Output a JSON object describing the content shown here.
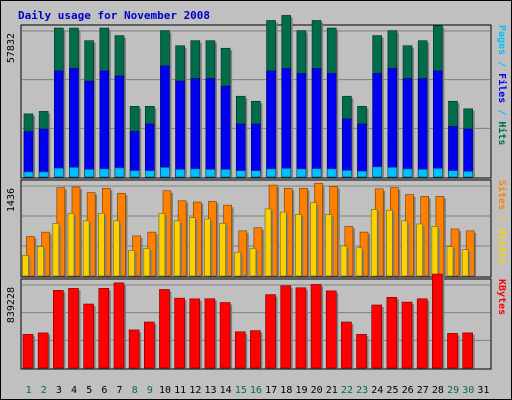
{
  "chart_data": {
    "type": "bar",
    "title": "Daily usage for November 2008",
    "categories": [
      "1",
      "2",
      "3",
      "4",
      "5",
      "6",
      "7",
      "8",
      "9",
      "10",
      "11",
      "12",
      "13",
      "14",
      "15",
      "16",
      "17",
      "18",
      "19",
      "20",
      "21",
      "22",
      "23",
      "24",
      "25",
      "26",
      "27",
      "28",
      "29",
      "30",
      "31"
    ],
    "weekend_days": [
      "1",
      "2",
      "8",
      "9",
      "15",
      "16",
      "22",
      "23",
      "29",
      "30"
    ],
    "colors": {
      "hits": "#006c4c",
      "files": "#0000f0",
      "pages": "#00c0ff",
      "visits": "#ff8000",
      "sites": "#ffd000",
      "kbytes": "#ff0000",
      "weekday_label": "#000000",
      "weekend_label": "#007040",
      "plot_bg": "#c0c0c0",
      "grid": "#808080"
    },
    "panels": [
      {
        "id": "hits-files-pages",
        "ymax": 57832,
        "ytick_label": "57832",
        "right_label": [
          {
            "text": "Pages",
            "color": "#00c0ff"
          },
          {
            "text": " / ",
            "color": "#00c0ff"
          },
          {
            "text": "Files",
            "color": "#0000f0"
          },
          {
            "text": " / ",
            "color": "#00c0ff"
          },
          {
            "text": "Hits",
            "color": "#006c4c"
          }
        ],
        "series": [
          {
            "name": "Hits",
            "values": [
              25000,
              26000,
              59000,
              59000,
              54000,
              59000,
              56000,
              28000,
              28000,
              58000,
              52000,
              54000,
              54000,
              51000,
              32000,
              30000,
              62000,
              64000,
              58000,
              62000,
              59000,
              32000,
              28000,
              56000,
              58000,
              52000,
              54000,
              60000,
              30000,
              27000,
              0
            ]
          },
          {
            "name": "Files",
            "values": [
              18000,
              19000,
              42000,
              43000,
              38000,
              42000,
              40000,
              18000,
              21000,
              44000,
              38000,
              39000,
              39000,
              36000,
              21000,
              21000,
              42000,
              43000,
              41000,
              43000,
              41000,
              23000,
              21000,
              41000,
              43000,
              39000,
              39000,
              42000,
              20000,
              19000,
              0
            ]
          },
          {
            "name": "Pages",
            "values": [
              2000,
              2000,
              3500,
              3800,
              3000,
              3200,
              3600,
              2500,
              2500,
              3800,
              3000,
              3200,
              3000,
              3000,
              2500,
              2500,
              3200,
              3400,
              3200,
              3300,
              3200,
              2600,
              2300,
              4000,
              3800,
              3200,
              3000,
              3400,
              2500,
              2200,
              0
            ]
          }
        ]
      },
      {
        "id": "visits-sites",
        "ymax": 1436,
        "ytick_label": "1436",
        "right_label": [
          {
            "text": "Sites",
            "color": "#ff8000"
          },
          {
            "text": " / ",
            "color": "#ffd000"
          },
          {
            "text": "Visits",
            "color": "#ffd000"
          }
        ],
        "series": [
          {
            "name": "Visits",
            "values": [
              630,
              700,
              1410,
              1420,
              1330,
              1400,
              1320,
              640,
              700,
              1360,
              1200,
              1180,
              1190,
              1130,
              720,
              770,
              1450,
              1400,
              1400,
              1480,
              1430,
              790,
              700,
              1390,
              1410,
              1300,
              1270,
              1270,
              750,
              720,
              0
            ]
          },
          {
            "name": "Sites",
            "values": [
              330,
              470,
              840,
              1000,
              880,
              1000,
              880,
              410,
              440,
              1000,
              880,
              930,
              910,
              840,
              380,
              440,
              1070,
              1020,
              980,
              1170,
              980,
              480,
              450,
              1060,
              1050,
              880,
              830,
              790,
              470,
              420,
              0
            ]
          }
        ]
      },
      {
        "id": "kbytes",
        "ymax": 839228,
        "ytick_label": "839228",
        "right_label": [
          {
            "text": "KBytes",
            "color": "#ff0000"
          }
        ],
        "series": [
          {
            "name": "KBytes",
            "values": [
              340000,
              355000,
              785000,
              805000,
              647000,
              806000,
              861000,
              385000,
              465000,
              794000,
              706000,
              699000,
              700000,
              662000,
              366000,
              378000,
              742000,
              831000,
              811000,
              845000,
              780000,
              465000,
              340000,
              637000,
              715000,
              666000,
              700000,
              950000,
              350000,
              355000,
              0
            ]
          }
        ]
      }
    ]
  }
}
